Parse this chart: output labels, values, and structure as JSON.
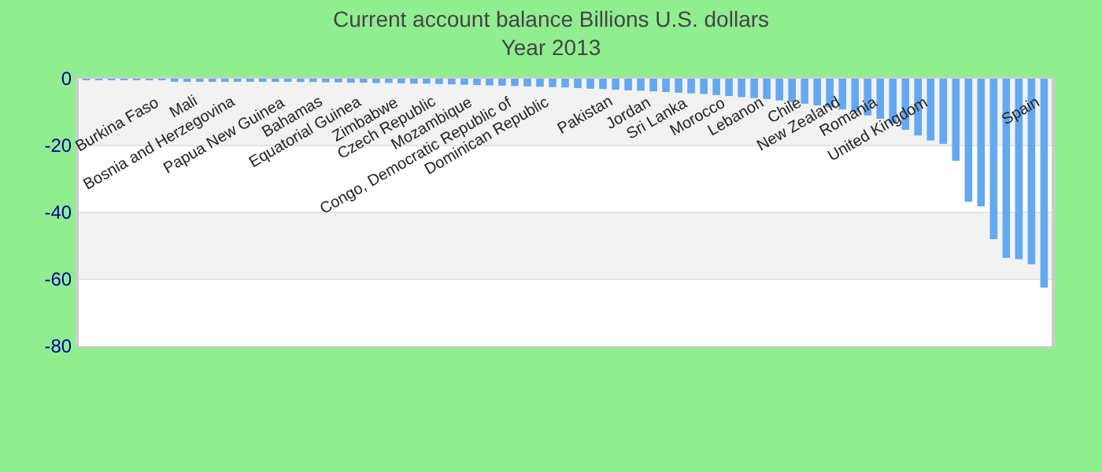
{
  "chart_data": {
    "type": "bar",
    "title": "Current account balance Billions U.S. dollars",
    "subtitle": "Year 2013",
    "categories": [
      null,
      null,
      null,
      null,
      null,
      null,
      "Burkina Faso",
      null,
      null,
      "Mali",
      null,
      null,
      "Bosnia and Herzegovina",
      null,
      null,
      null,
      "Papua New Guinea",
      null,
      null,
      "Bahamas",
      null,
      null,
      "Equatorial Guinea",
      null,
      null,
      "Zimbabwe",
      null,
      null,
      "Czech Republic",
      null,
      null,
      "Mozambique",
      null,
      null,
      "Congo, Democratic Republic of",
      null,
      null,
      "Dominican Republic",
      null,
      null,
      null,
      null,
      "Pakistan",
      null,
      null,
      "Jordan",
      null,
      null,
      "Sri Lanka",
      null,
      null,
      "Morocco",
      null,
      null,
      "Lebanon",
      null,
      null,
      "Chile",
      null,
      null,
      "New Zealand",
      null,
      null,
      "Romania",
      null,
      null,
      null,
      "United Kingdom",
      null,
      null,
      null,
      null,
      null,
      null,
      null,
      null,
      "Spain"
    ],
    "values": [
      -0.1,
      -0.2,
      -0.2,
      -0.3,
      -0.3,
      -0.4,
      -0.4,
      -0.5,
      -0.5,
      -0.6,
      -0.6,
      -0.7,
      -0.7,
      -0.8,
      -0.8,
      -0.9,
      -0.9,
      -1,
      -1,
      -1.1,
      -1.1,
      -1.2,
      -1.2,
      -1.3,
      -1.3,
      -1.4,
      -1.5,
      -1.5,
      -1.6,
      -1.7,
      -1.8,
      -1.9,
      -2,
      -2.1,
      -2.2,
      -2.3,
      -2.4,
      -2.5,
      -2.6,
      -2.8,
      -3,
      -3.1,
      -3.3,
      -3.5,
      -3.6,
      -3.8,
      -4,
      -4.2,
      -4.4,
      -4.6,
      -4.9,
      -5.2,
      -5.5,
      -5.8,
      -6.1,
      -6.5,
      -7,
      -7.5,
      -8,
      -8.6,
      -9.2,
      -10,
      -11,
      -12,
      -13.4,
      -15.3,
      -17,
      -18.5,
      -19.5,
      -24.6,
      -36.8,
      -38.2,
      -48,
      -53.6,
      -54,
      -55.5,
      -62.5
    ],
    "color": "#64a8f0",
    "ylim": [
      -80,
      0
    ],
    "yticks": [
      -80,
      -60,
      -40,
      -20,
      0
    ],
    "grid": "y"
  }
}
